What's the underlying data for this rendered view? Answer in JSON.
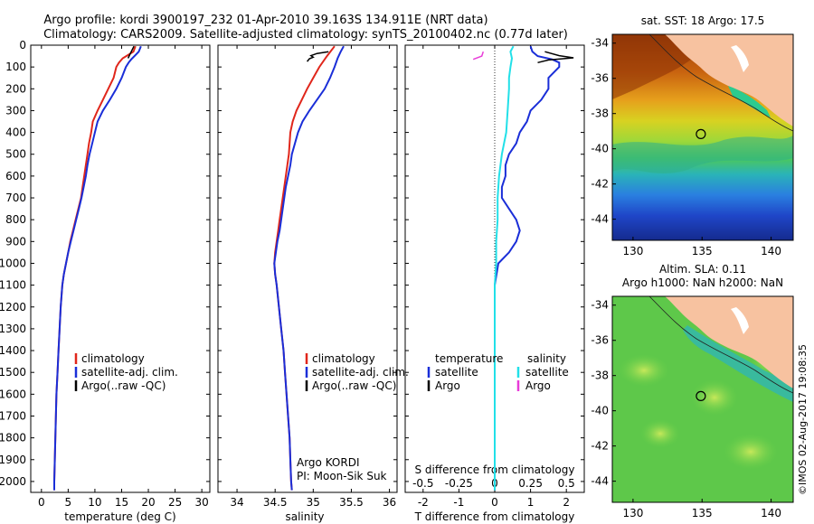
{
  "title_line1": "Argo profile: kordi 3900197_232 01-Apr-2010 39.163S 134.911E (NRT data)",
  "title_line2": "Climatology: CARS2009. Satellite-adjusted climatology: synTS_20100402.nc (0.77d later)",
  "depth_ticks": [
    "0",
    "100",
    "200",
    "300",
    "400",
    "500",
    "600",
    "700",
    "800",
    "900",
    "1000",
    "1100",
    "1200",
    "1300",
    "1400",
    "1500",
    "1600",
    "1700",
    "1800",
    "1900",
    "2000"
  ],
  "colors": {
    "climatology": "#e0261b",
    "satellite": "#1a2ed8",
    "argo": "#000000",
    "sat_salinity": "#22e0e8",
    "argo_salinity": "#e83bd8"
  },
  "chart_data": [
    {
      "type": "line",
      "xlabel": "temperature (deg C)",
      "ylim": [
        2050,
        0
      ],
      "xlim": [
        -2,
        31.5
      ],
      "xticks": [
        "0",
        "5",
        "10",
        "15",
        "20",
        "25",
        "30"
      ],
      "legend": [
        "climatology",
        "satellite-adj. clim.",
        "Argo(..raw -QC)"
      ],
      "legend_position": "bottom-right",
      "series": [
        {
          "name": "climatology",
          "points": [
            [
              17.6,
              5
            ],
            [
              17.2,
              30
            ],
            [
              16.2,
              45
            ],
            [
              15.2,
              60
            ],
            [
              14.5,
              80
            ],
            [
              14.0,
              100
            ],
            [
              13.5,
              150
            ],
            [
              12.5,
              200
            ],
            [
              11.5,
              250
            ],
            [
              10.5,
              300
            ],
            [
              9.6,
              350
            ],
            [
              9.3,
              400
            ],
            [
              8.9,
              450
            ],
            [
              8.6,
              500
            ],
            [
              8.3,
              550
            ],
            [
              8.0,
              600
            ],
            [
              7.7,
              650
            ],
            [
              7.4,
              700
            ],
            [
              6.9,
              750
            ],
            [
              6.4,
              800
            ],
            [
              5.9,
              850
            ],
            [
              5.4,
              900
            ],
            [
              5.0,
              950
            ],
            [
              4.6,
              1000
            ],
            [
              4.2,
              1050
            ],
            [
              3.9,
              1100
            ],
            [
              3.6,
              1200
            ],
            [
              3.4,
              1300
            ],
            [
              3.2,
              1400
            ],
            [
              3.0,
              1500
            ],
            [
              2.8,
              1600
            ],
            [
              2.7,
              1700
            ],
            [
              2.6,
              1800
            ],
            [
              2.5,
              1900
            ],
            [
              2.4,
              2000
            ],
            [
              2.4,
              2040
            ]
          ]
        },
        {
          "name": "satellite-adj. clim.",
          "points": [
            [
              18.6,
              5
            ],
            [
              18.2,
              30
            ],
            [
              17.4,
              50
            ],
            [
              16.8,
              65
            ],
            [
              16.3,
              80
            ],
            [
              15.8,
              100
            ],
            [
              15.0,
              150
            ],
            [
              14.0,
              200
            ],
            [
              12.8,
              250
            ],
            [
              11.5,
              300
            ],
            [
              10.5,
              350
            ],
            [
              10.0,
              400
            ],
            [
              9.5,
              450
            ],
            [
              9.0,
              500
            ],
            [
              8.6,
              550
            ],
            [
              8.3,
              600
            ],
            [
              7.9,
              650
            ],
            [
              7.5,
              700
            ],
            [
              7.0,
              750
            ],
            [
              6.5,
              800
            ],
            [
              6.0,
              850
            ],
            [
              5.5,
              900
            ],
            [
              5.0,
              950
            ],
            [
              4.6,
              1000
            ],
            [
              4.2,
              1050
            ],
            [
              3.9,
              1100
            ],
            [
              3.6,
              1200
            ],
            [
              3.4,
              1300
            ],
            [
              3.2,
              1400
            ],
            [
              3.0,
              1500
            ],
            [
              2.8,
              1600
            ],
            [
              2.7,
              1700
            ],
            [
              2.6,
              1800
            ],
            [
              2.5,
              1900
            ],
            [
              2.4,
              2000
            ],
            [
              2.4,
              2040
            ]
          ]
        },
        {
          "name": "Argo(..raw -QC)",
          "points": [
            [
              17.3,
              5
            ],
            [
              17.0,
              20
            ],
            [
              16.6,
              40
            ],
            [
              16.2,
              60
            ]
          ]
        }
      ]
    },
    {
      "type": "line",
      "xlabel": "salinity",
      "ylim": [
        2050,
        0
      ],
      "xlim": [
        33.75,
        36.1
      ],
      "xticks": [
        "34",
        "34.5",
        "35",
        "35.5",
        "36"
      ],
      "legend": [
        "climatology",
        "satellite-adj. clim.",
        "Argo(..raw -QC)"
      ],
      "legend_position": "bottom-right",
      "annotation": [
        "Argo KORDI",
        "PI: Moon-Sik Suk"
      ],
      "series": [
        {
          "name": "climatology",
          "points": [
            [
              35.28,
              5
            ],
            [
              35.18,
              50
            ],
            [
              35.08,
              100
            ],
            [
              35.0,
              150
            ],
            [
              34.92,
              200
            ],
            [
              34.85,
              250
            ],
            [
              34.78,
              300
            ],
            [
              34.73,
              350
            ],
            [
              34.7,
              400
            ],
            [
              34.69,
              450
            ],
            [
              34.68,
              500
            ],
            [
              34.66,
              550
            ],
            [
              34.64,
              600
            ],
            [
              34.62,
              650
            ],
            [
              34.6,
              700
            ],
            [
              34.58,
              750
            ],
            [
              34.56,
              800
            ],
            [
              34.54,
              850
            ],
            [
              34.52,
              900
            ],
            [
              34.5,
              950
            ],
            [
              34.49,
              1000
            ],
            [
              34.5,
              1050
            ],
            [
              34.52,
              1100
            ],
            [
              34.55,
              1200
            ],
            [
              34.58,
              1300
            ],
            [
              34.61,
              1400
            ],
            [
              34.63,
              1500
            ],
            [
              34.65,
              1600
            ],
            [
              34.67,
              1700
            ],
            [
              34.69,
              1800
            ],
            [
              34.7,
              1900
            ],
            [
              34.71,
              2000
            ],
            [
              34.72,
              2040
            ]
          ]
        },
        {
          "name": "satellite-adj. clim.",
          "points": [
            [
              35.4,
              5
            ],
            [
              35.36,
              30
            ],
            [
              35.32,
              60
            ],
            [
              35.28,
              100
            ],
            [
              35.22,
              150
            ],
            [
              35.15,
              200
            ],
            [
              35.05,
              250
            ],
            [
              34.95,
              300
            ],
            [
              34.86,
              350
            ],
            [
              34.8,
              400
            ],
            [
              34.76,
              450
            ],
            [
              34.72,
              500
            ],
            [
              34.7,
              550
            ],
            [
              34.67,
              600
            ],
            [
              34.64,
              650
            ],
            [
              34.62,
              700
            ],
            [
              34.6,
              750
            ],
            [
              34.58,
              800
            ],
            [
              34.56,
              850
            ],
            [
              34.53,
              900
            ],
            [
              34.51,
              950
            ],
            [
              34.49,
              1000
            ],
            [
              34.5,
              1050
            ],
            [
              34.52,
              1100
            ],
            [
              34.55,
              1200
            ],
            [
              34.58,
              1300
            ],
            [
              34.61,
              1400
            ],
            [
              34.63,
              1500
            ],
            [
              34.65,
              1600
            ],
            [
              34.67,
              1700
            ],
            [
              34.69,
              1800
            ],
            [
              34.7,
              1900
            ],
            [
              34.71,
              2000
            ],
            [
              34.72,
              2040
            ]
          ]
        },
        {
          "name": "Argo(..raw -QC)",
          "points": [
            [
              35.2,
              30
            ],
            [
              35.05,
              38
            ],
            [
              34.97,
              48
            ],
            [
              35.0,
              55
            ],
            [
              34.95,
              62
            ],
            [
              34.92,
              75
            ]
          ]
        }
      ]
    },
    {
      "type": "line",
      "xlabel": "T difference from climatology",
      "title": "S difference from climatology",
      "ylim": [
        2050,
        0
      ],
      "xlim": [
        -2.5,
        2.5
      ],
      "t_ticks": [
        "-2",
        "-1",
        "0",
        "1",
        "2"
      ],
      "s_ticks": [
        "-0.5",
        "-0.25",
        "0",
        "0.25",
        "0.5"
      ],
      "legend_left_title": "temperature",
      "legend_right_title": "salinity",
      "legend": [
        "satellite",
        "Argo",
        "satellite",
        "Argo"
      ],
      "legend_position": "bottom",
      "series": [
        {
          "name": "temperature satellite",
          "points": [
            [
              1.0,
              5
            ],
            [
              1.05,
              30
            ],
            [
              1.2,
              50
            ],
            [
              1.6,
              65
            ],
            [
              1.8,
              80
            ],
            [
              1.8,
              100
            ],
            [
              1.5,
              150
            ],
            [
              1.5,
              200
            ],
            [
              1.3,
              250
            ],
            [
              1.0,
              300
            ],
            [
              0.9,
              350
            ],
            [
              0.7,
              400
            ],
            [
              0.6,
              450
            ],
            [
              0.4,
              500
            ],
            [
              0.3,
              550
            ],
            [
              0.3,
              600
            ],
            [
              0.2,
              650
            ],
            [
              0.2,
              700
            ],
            [
              0.4,
              750
            ],
            [
              0.6,
              800
            ],
            [
              0.7,
              850
            ],
            [
              0.6,
              900
            ],
            [
              0.4,
              950
            ],
            [
              0.1,
              1000
            ],
            [
              0.0,
              1100
            ],
            [
              0.0,
              1300
            ],
            [
              0.0,
              1500
            ],
            [
              0.0,
              1800
            ],
            [
              0.0,
              2040
            ]
          ]
        },
        {
          "name": "temperature Argo",
          "points": [
            [
              1.4,
              30
            ],
            [
              1.8,
              48
            ],
            [
              2.2,
              58
            ],
            [
              1.5,
              68
            ],
            [
              1.2,
              80
            ]
          ]
        },
        {
          "name": "salinity satellite",
          "points": [
            [
              0.13,
              5
            ],
            [
              0.11,
              30
            ],
            [
              0.12,
              60
            ],
            [
              0.11,
              100
            ],
            [
              0.1,
              150
            ],
            [
              0.1,
              200
            ],
            [
              0.09,
              300
            ],
            [
              0.08,
              400
            ],
            [
              0.05,
              500
            ],
            [
              0.03,
              600
            ],
            [
              0.02,
              700
            ],
            [
              0.02,
              800
            ],
            [
              0.01,
              900
            ],
            [
              0.01,
              1000
            ],
            [
              0.0,
              1100
            ],
            [
              0.0,
              1500
            ],
            [
              0.0,
              2040
            ]
          ]
        },
        {
          "name": "salinity Argo",
          "points": [
            [
              -0.08,
              30
            ],
            [
              -0.09,
              50
            ],
            [
              -0.15,
              65
            ]
          ]
        }
      ]
    }
  ],
  "maps": [
    {
      "title": "sat. SST: 18 Argo: 17.5",
      "xticks": [
        "130",
        "135",
        "140"
      ],
      "yticks": [
        "-34",
        "-36",
        "-38",
        "-40",
        "-42",
        "-44"
      ],
      "marker_lon": 134.911,
      "marker_lat": -39.163
    },
    {
      "title_line1": "Altim. SLA: 0.11",
      "title_line2": "Argo h1000: NaN h2000: NaN",
      "xticks": [
        "130",
        "135",
        "140"
      ],
      "yticks": [
        "-34",
        "-36",
        "-38",
        "-40",
        "-42",
        "-44"
      ],
      "marker_lon": 134.911,
      "marker_lat": -39.163
    }
  ],
  "watermark": "©IMOS 02-Aug-2017 19:08:35"
}
